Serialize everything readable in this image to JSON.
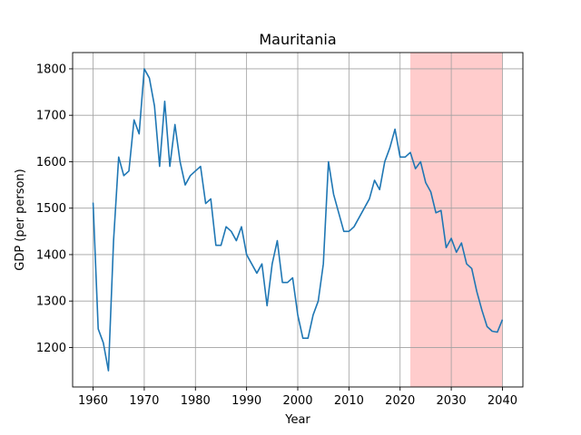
{
  "chart_data": {
    "type": "line",
    "title": "Mauritania",
    "xlabel": "Year",
    "ylabel": "GDP (per person)",
    "xlim": [
      1956,
      2044
    ],
    "ylim": [
      1115,
      1835
    ],
    "xticks": [
      1960,
      1970,
      1980,
      1990,
      2000,
      2010,
      2020,
      2030,
      2040
    ],
    "yticks": [
      1200,
      1300,
      1400,
      1500,
      1600,
      1700,
      1800
    ],
    "grid": true,
    "line_color": "#1f77b4",
    "shaded_region": {
      "x_start": 2022,
      "x_end": 2040,
      "color": "#ff0000",
      "opacity": 0.2
    },
    "series": [
      {
        "x": [
          1960,
          1961,
          1962,
          1963,
          1964,
          1965,
          1966,
          1967,
          1968,
          1969,
          1970,
          1971,
          1972,
          1973,
          1974,
          1975,
          1976,
          1977,
          1978,
          1979,
          1980,
          1981,
          1982,
          1983,
          1984,
          1985,
          1986,
          1987,
          1988,
          1989,
          1990,
          1991,
          1992,
          1993,
          1994,
          1995,
          1996,
          1997,
          1998,
          1999,
          2000,
          2001,
          2002,
          2003,
          2004,
          2005,
          2006,
          2007,
          2008,
          2009,
          2010,
          2011,
          2012,
          2013,
          2014,
          2015,
          2016,
          2017,
          2018,
          2019,
          2020,
          2021,
          2022,
          2023,
          2024,
          2025,
          2026,
          2027,
          2028,
          2029,
          2030,
          2031,
          2032,
          2033,
          2034,
          2035,
          2036,
          2037,
          2038,
          2039,
          2040
        ],
        "y": [
          1512,
          1240,
          1210,
          1150,
          1430,
          1610,
          1570,
          1580,
          1690,
          1660,
          1800,
          1780,
          1720,
          1590,
          1730,
          1590,
          1680,
          1600,
          1550,
          1570,
          1580,
          1590,
          1510,
          1520,
          1420,
          1420,
          1460,
          1450,
          1430,
          1460,
          1400,
          1380,
          1360,
          1380,
          1290,
          1380,
          1430,
          1340,
          1340,
          1350,
          1270,
          1220,
          1220,
          1270,
          1300,
          1380,
          1600,
          1530,
          1490,
          1450,
          1450,
          1460,
          1480,
          1500,
          1520,
          1560,
          1540,
          1600,
          1630,
          1670,
          1610,
          1610,
          1620,
          1585,
          1600,
          1555,
          1535,
          1490,
          1495,
          1415,
          1435,
          1405,
          1425,
          1380,
          1370,
          1320,
          1280,
          1245,
          1235,
          1233,
          1260
        ]
      }
    ]
  }
}
